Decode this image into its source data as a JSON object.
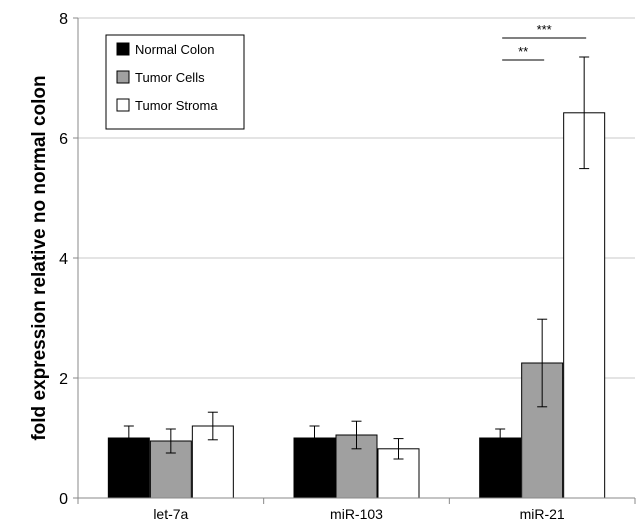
{
  "chart_data": {
    "type": "bar",
    "title": "",
    "xlabel": "",
    "ylabel": "fold expression relative no normal colon",
    "ylim": [
      0,
      8
    ],
    "yticks": [
      "0",
      "2",
      "4",
      "6",
      "8"
    ],
    "grid": true,
    "legend_position": "top-left",
    "categories": [
      "let-7a",
      "miR-103",
      "miR-21"
    ],
    "series": [
      {
        "name": "Normal Colon",
        "color": "#000000",
        "values": [
          1.0,
          1.0,
          1.0
        ],
        "errors": [
          0.2,
          0.2,
          0.15
        ]
      },
      {
        "name": "Tumor Cells",
        "color": "#a0a0a0",
        "values": [
          0.95,
          1.05,
          2.25
        ],
        "errors": [
          0.2,
          0.23,
          0.73
        ]
      },
      {
        "name": "Tumor Stroma",
        "color": "#ffffff",
        "values": [
          1.2,
          0.82,
          6.42
        ],
        "errors": [
          0.23,
          0.17,
          0.93
        ]
      }
    ],
    "annotations": [
      {
        "text": "**",
        "category": "miR-21",
        "from_series": 0,
        "to_series": 1
      },
      {
        "text": "***",
        "category": "miR-21",
        "from_series": 0,
        "to_series": 2
      }
    ]
  }
}
